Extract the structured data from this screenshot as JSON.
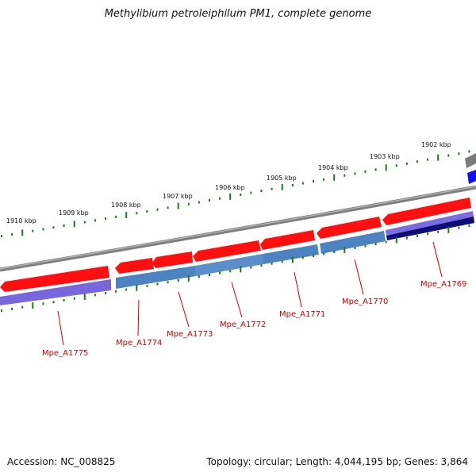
{
  "title": "Methylibium petroleiphilum PM1, complete genome",
  "footer": {
    "accession": "Accession: NC_008825",
    "summary": "Topology: circular; Length: 4,044,195 bp; Genes: 3,864"
  },
  "colors": {
    "forward_cds": "#ff0000",
    "reverse_cds": "#4f86c6",
    "violet_feature": "#7a6ae0",
    "navy_feature": "#10107a",
    "backbone": "#808080",
    "tick": "#1a7a1a",
    "label": "#cc0000"
  },
  "ruler_labels": [
    "1910 kbp",
    "1909 kbp",
    "1908 kbp",
    "1907 kbp",
    "1906 kbp",
    "1905 kbp",
    "1904 kbp",
    "1903 kbp",
    "1902 kbp"
  ],
  "gene_labels": [
    "Mpe_A1775",
    "Mpe_A1774",
    "Mpe_A1773",
    "Mpe_A1772",
    "Mpe_A1771",
    "Mpe_A1770",
    "Mpe_A1769"
  ]
}
